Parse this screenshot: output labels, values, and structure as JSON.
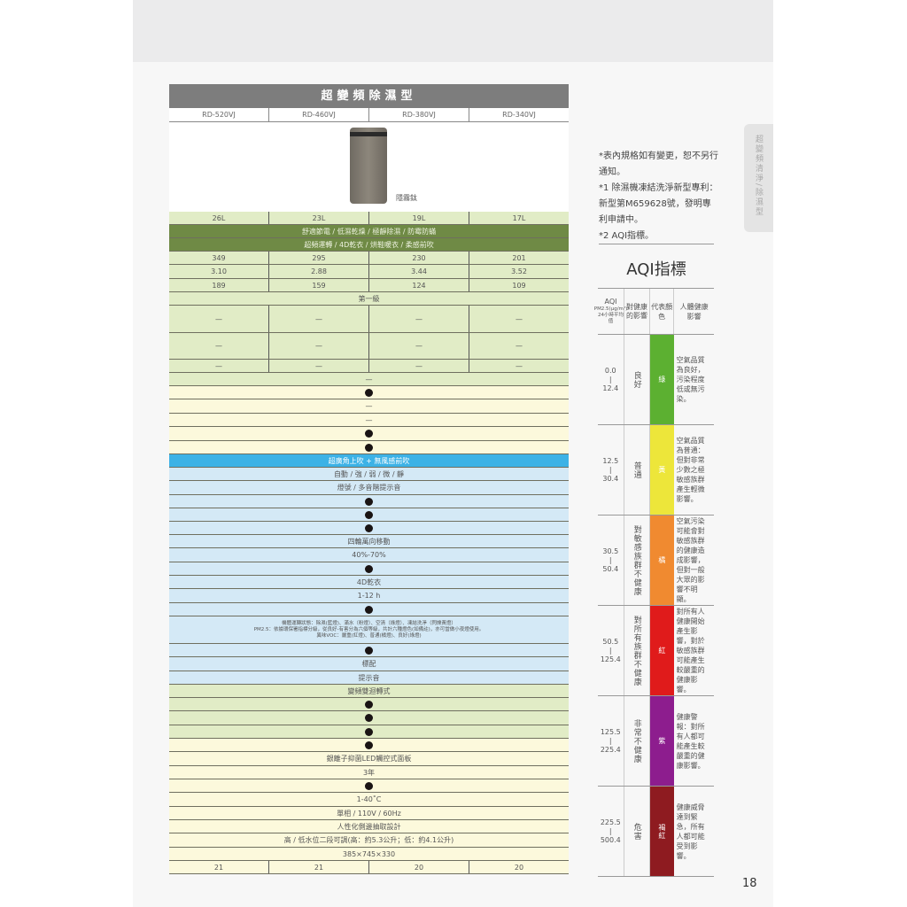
{
  "spec": {
    "title": "超變頻除濕型",
    "models": [
      "RD-520VJ",
      "RD-460VJ",
      "RD-380VJ",
      "RD-340VJ"
    ],
    "color_label": "隱霧鈦",
    "rows": [
      {
        "cells": [
          "26L",
          "23L",
          "19L",
          "17L"
        ]
      },
      {
        "value": "舒適節電 / 低濕乾燥 / 極靜除濕 / 防霉防蟎"
      },
      {
        "value": "超頻運轉 / 4D乾衣 / 烘鞋暖衣 / 柔感前吹"
      },
      {
        "cells": [
          "349",
          "295",
          "230",
          "201"
        ]
      },
      {
        "cells": [
          "3.10",
          "2.88",
          "3.44",
          "3.52"
        ]
      },
      {
        "cells": [
          "189",
          "159",
          "124",
          "109"
        ]
      },
      {
        "value": "第一級"
      },
      {
        "cells": [
          "—",
          "—",
          "—",
          "—"
        ]
      },
      {
        "cells": [
          "—",
          "—",
          "—",
          "—"
        ]
      },
      {
        "cells": [
          "—",
          "—",
          "—",
          "—"
        ]
      },
      {
        "value": "—"
      },
      {
        "value": "●"
      },
      {
        "value": "—"
      },
      {
        "value": "—"
      },
      {
        "value": "●"
      },
      {
        "value": "●"
      },
      {
        "value": "超廣角上吹 + 無風感前吹"
      },
      {
        "value": "自動 / 強 / 弱 / 微 / 靜"
      },
      {
        "value": "燈號 / 多音階提示音"
      },
      {
        "value": "●"
      },
      {
        "value": "●"
      },
      {
        "value": "●"
      },
      {
        "value": "四輪萬向移動"
      },
      {
        "value": "40%-70%"
      },
      {
        "value": "●"
      },
      {
        "value": "4D乾衣"
      },
      {
        "value": "1-12 h"
      },
      {
        "value": "●"
      },
      {
        "lines": [
          "機體運轉狀態：除濕(藍燈)、滿水（粉燈）、空清（綠燈）、凍結洗淨（閃爍黃燈）",
          "PM2.5：依據環保署指標分級，從良好-有害分為六個等級，共計六種燈色(如備註)，亦可當做小夜燈使用。",
          "異味VOC：嚴重(紅燈)、普通(橘燈)、良好(綠燈)"
        ]
      },
      {
        "value": "●"
      },
      {
        "value": "標配"
      },
      {
        "value": "提示音"
      },
      {
        "value": "變頻雙迴轉式"
      },
      {
        "value": "●"
      },
      {
        "value": "●"
      },
      {
        "value": "●"
      },
      {
        "value": "●"
      },
      {
        "value": "銀離子抑菌LED觸控式面板"
      },
      {
        "value": "3年"
      },
      {
        "value": "●"
      },
      {
        "value": "1-40˚C"
      },
      {
        "value": "單相 / 110V / 60Hz"
      },
      {
        "value": "人性化側邊抽取設計"
      },
      {
        "value": "高 / 低水位二段可調(高：約5.3公升；低：約4.1公升)"
      },
      {
        "value": "385×745×330"
      },
      {
        "cells": [
          "21",
          "21",
          "20",
          "20"
        ]
      }
    ]
  },
  "notes": [
    "*表內規格如有變更，恕不另行通知。",
    "*1 除濕機凍結洗淨新型專利：新型第M659628號，發明專利申請中。",
    "*2 AQI指標。"
  ],
  "aqi": {
    "title": "AQI指標",
    "headers": {
      "aqi": "AQI",
      "aqi_sub": "PM2.5(μg/m³)",
      "aqi_sub2": "24小時平均值",
      "health": "對健康的影響",
      "color": "代表顏色",
      "effect": "人體健康影響"
    },
    "levels": [
      {
        "range_low": "0.0",
        "range_high": "12.4",
        "health": "良好",
        "color_name": "綠",
        "color": "#5cb031",
        "effect": "空氣品質為良好，污染程度低或無污染。"
      },
      {
        "range_low": "12.5",
        "range_high": "30.4",
        "health": "普通",
        "color_name": "黃",
        "color": "#ede63a",
        "effect": "空氣品質為普通：但對非常少數之極敏感族群產生輕微影響。"
      },
      {
        "range_low": "30.5",
        "range_high": "50.4",
        "health": "對敏感族群不健康",
        "color_name": "橘",
        "color": "#f08a30",
        "effect": "空氣污染可能會對敏感族群的健康造成影響，但對一般大眾的影響不明顯。"
      },
      {
        "range_low": "50.5",
        "range_high": "125.4",
        "health": "對所有族群不健康",
        "color_name": "紅",
        "color": "#e01b1b",
        "effect": "對所有人健康開始產生影響，對於敏感族群可能產生較嚴重的健康影響。"
      },
      {
        "range_low": "125.5",
        "range_high": "225.4",
        "health": "非常不健康",
        "color_name": "紫",
        "color": "#8d1d8e",
        "effect": "健康警報：對所有人都可能產生較嚴重的健康影響。"
      },
      {
        "range_low": "225.5",
        "range_high": "500.4",
        "health": "危害",
        "color_name": "褐紅",
        "color": "#8e1b20",
        "effect": "健康威脅達到緊急，所有人都可能受到影響。"
      }
    ]
  },
  "side_tab": "超變頻清淨/除濕型",
  "page_number": "18"
}
